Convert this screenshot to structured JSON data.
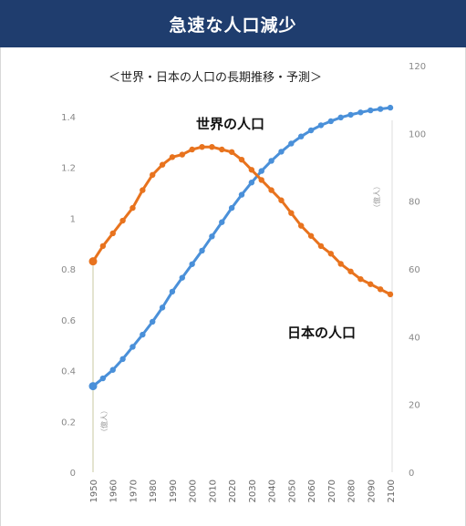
{
  "header": {
    "title": "急速な人口減少"
  },
  "colors": {
    "header_bg": "#1f3d6e",
    "world": "#4a90d9",
    "japan": "#e8731e"
  },
  "chart_data": {
    "type": "line",
    "title": "＜世界・日本の人口の長期推移・予測＞",
    "x": [
      1950,
      1955,
      1960,
      1965,
      1970,
      1975,
      1980,
      1985,
      1990,
      1995,
      2000,
      2005,
      2010,
      2015,
      2020,
      2025,
      2030,
      2035,
      2040,
      2045,
      2050,
      2055,
      2060,
      2065,
      2070,
      2075,
      2080,
      2085,
      2090,
      2095,
      2100
    ],
    "xticks": [
      "1950",
      "1960",
      "1970",
      "1980",
      "1990",
      "2000",
      "2010",
      "2020",
      "2030",
      "2040",
      "2050",
      "2060",
      "2070",
      "2080",
      "2090",
      "2100"
    ],
    "left_axis": {
      "ylim": [
        0,
        1.6
      ],
      "ticks": [
        "0",
        "0.2",
        "0.4",
        "0.6",
        "0.8",
        "1",
        "1.2",
        "1.4"
      ],
      "ylabel": ""
    },
    "right_axis": {
      "ylim": [
        0,
        120
      ],
      "ticks": [
        "0",
        "20",
        "40",
        "60",
        "80",
        "100",
        "120"
      ],
      "ylabel": ""
    },
    "series": [
      {
        "name": "世界の人口",
        "axis": "right",
        "values": [
          25.4,
          27.7,
          30.2,
          33.4,
          37.0,
          40.6,
          44.4,
          48.6,
          53.3,
          57.4,
          61.4,
          65.4,
          69.6,
          73.8,
          78.0,
          81.9,
          85.5,
          88.9,
          91.9,
          94.6,
          97.0,
          99.1,
          100.9,
          102.4,
          103.6,
          104.7,
          105.5,
          106.2,
          106.8,
          107.2,
          107.6
        ]
      },
      {
        "name": "日本の人口",
        "axis": "left",
        "values": [
          0.83,
          0.89,
          0.94,
          0.99,
          1.04,
          1.11,
          1.17,
          1.21,
          1.24,
          1.25,
          1.27,
          1.28,
          1.28,
          1.27,
          1.26,
          1.23,
          1.19,
          1.15,
          1.11,
          1.07,
          1.02,
          0.97,
          0.93,
          0.89,
          0.86,
          0.82,
          0.79,
          0.76,
          0.74,
          0.72,
          0.7
        ]
      }
    ],
    "annotations": {
      "world_label": "世界の人口",
      "japan_label": "日本の人口",
      "left_vertical": "（億人）",
      "right_vertical": "（億人）"
    },
    "legend": "inline",
    "grid": false
  }
}
